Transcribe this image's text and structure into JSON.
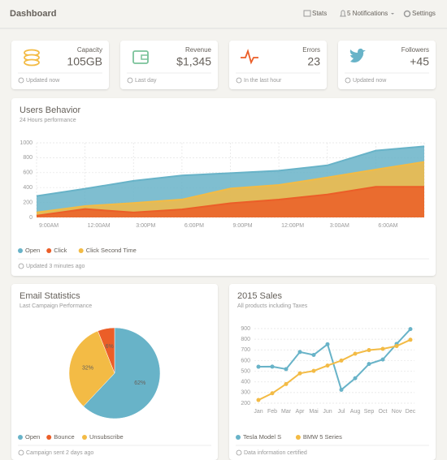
{
  "header": {
    "title": "Dashboard",
    "nav": [
      "Stats",
      "5 Notifications",
      "Settings"
    ]
  },
  "stats": [
    {
      "label": "Capacity",
      "value": "105GB",
      "footer": "Updated now"
    },
    {
      "label": "Revenue",
      "value": "$1,345",
      "footer": "Last day"
    },
    {
      "label": "Errors",
      "value": "23",
      "footer": "In the last hour"
    },
    {
      "label": "Followers",
      "value": "+45",
      "footer": "Updated now"
    }
  ],
  "chart_data": [
    {
      "type": "area",
      "title": "Users Behavior",
      "subtitle": "24 Hours performance",
      "footer": "Updated 3 minutes ago",
      "categories": [
        "9:00AM",
        "12:00AM",
        "3:00PM",
        "6:00PM",
        "9:00PM",
        "12:00PM",
        "3:00AM",
        "6:00AM",
        null
      ],
      "series": [
        {
          "name": "Open",
          "color": "#68b3c8",
          "values": [
            287,
            385,
            490,
            562,
            594,
            626,
            698,
            895,
            952
          ]
        },
        {
          "name": "Click",
          "color": "#eb5e28",
          "values": [
            23,
            113,
            67,
            108,
            190,
            239,
            307,
            410,
            410
          ]
        },
        {
          "name": "Click Second Time",
          "color": "#f3bb45",
          "values": [
            67,
            152,
            193,
            240,
            387,
            435,
            535,
            642,
            744
          ]
        }
      ],
      "draw_order": [
        0,
        2,
        1
      ],
      "ylim": [
        0,
        1000
      ],
      "yticks": [
        0,
        200,
        400,
        600,
        800,
        1000
      ],
      "grid": true
    },
    {
      "type": "pie",
      "title": "Email Statistics",
      "subtitle": "Last Campaign Performance",
      "footer": "Campaign sent 2 days ago",
      "values": [
        62,
        32,
        6
      ],
      "value_labels": [
        "62%",
        "32%",
        "6%"
      ],
      "colors": [
        "#68b3c8",
        "#f3bb45",
        "#eb5e28"
      ],
      "legend": [
        {
          "name": "Open",
          "color": "#68b3c8"
        },
        {
          "name": "Bounce",
          "color": "#eb5e28"
        },
        {
          "name": "Unsubscribe",
          "color": "#f3bb45"
        }
      ]
    },
    {
      "type": "line",
      "title": "2015 Sales",
      "subtitle": "All products including Taxes",
      "footer": "Data information certified",
      "categories": [
        "Jan",
        "Feb",
        "Mar",
        "Apr",
        "Mai",
        "Jun",
        "Jul",
        "Aug",
        "Sep",
        "Oct",
        "Nov",
        "Dec"
      ],
      "series": [
        {
          "name": "Tesla Model S",
          "color": "#68b3c8",
          "values": [
            542,
            543,
            520,
            680,
            653,
            753,
            326,
            434,
            568,
            610,
            756,
            895
          ]
        },
        {
          "name": "BMW 5 Series",
          "color": "#f3bb45",
          "values": [
            230,
            293,
            380,
            480,
            503,
            553,
            600,
            664,
            698,
            710,
            736,
            795
          ]
        }
      ],
      "ylim": [
        200,
        900
      ],
      "yticks": [
        200,
        300,
        400,
        500,
        600,
        700,
        800,
        900
      ],
      "grid": true
    }
  ]
}
